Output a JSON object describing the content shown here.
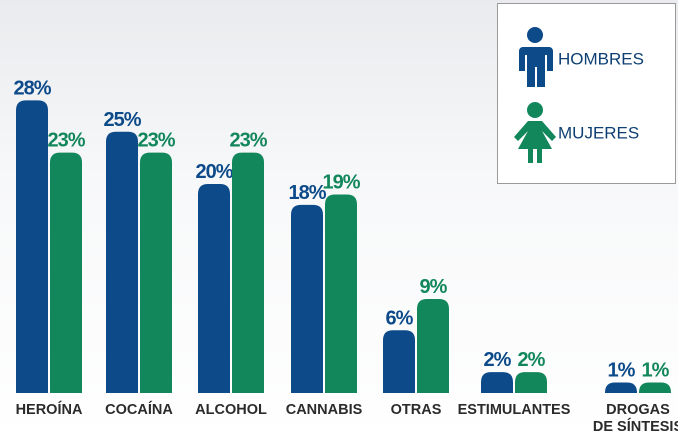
{
  "chart_data": {
    "type": "bar",
    "categories": [
      "HEROÍNA",
      "COCAÍNA",
      "ALCOHOL",
      "CANNABIS",
      "OTRAS",
      "ESTIMULANTES",
      "DROGAS\nDE SÍNTESIS"
    ],
    "series": [
      {
        "name": "HOMBRES",
        "color": "#0d4a8a",
        "values": [
          28,
          25,
          20,
          18,
          6,
          2,
          1
        ],
        "value_labels": [
          "28%",
          "25%",
          "20%",
          "18%",
          "6%",
          "2%",
          "1%"
        ]
      },
      {
        "name": "MUJERES",
        "color": "#13875c",
        "values": [
          23,
          23,
          23,
          19,
          9,
          2,
          1
        ],
        "value_labels": [
          "23%",
          "23%",
          "23%",
          "19%",
          "9%",
          "2%",
          "1%"
        ]
      }
    ],
    "legend": "top-right"
  }
}
